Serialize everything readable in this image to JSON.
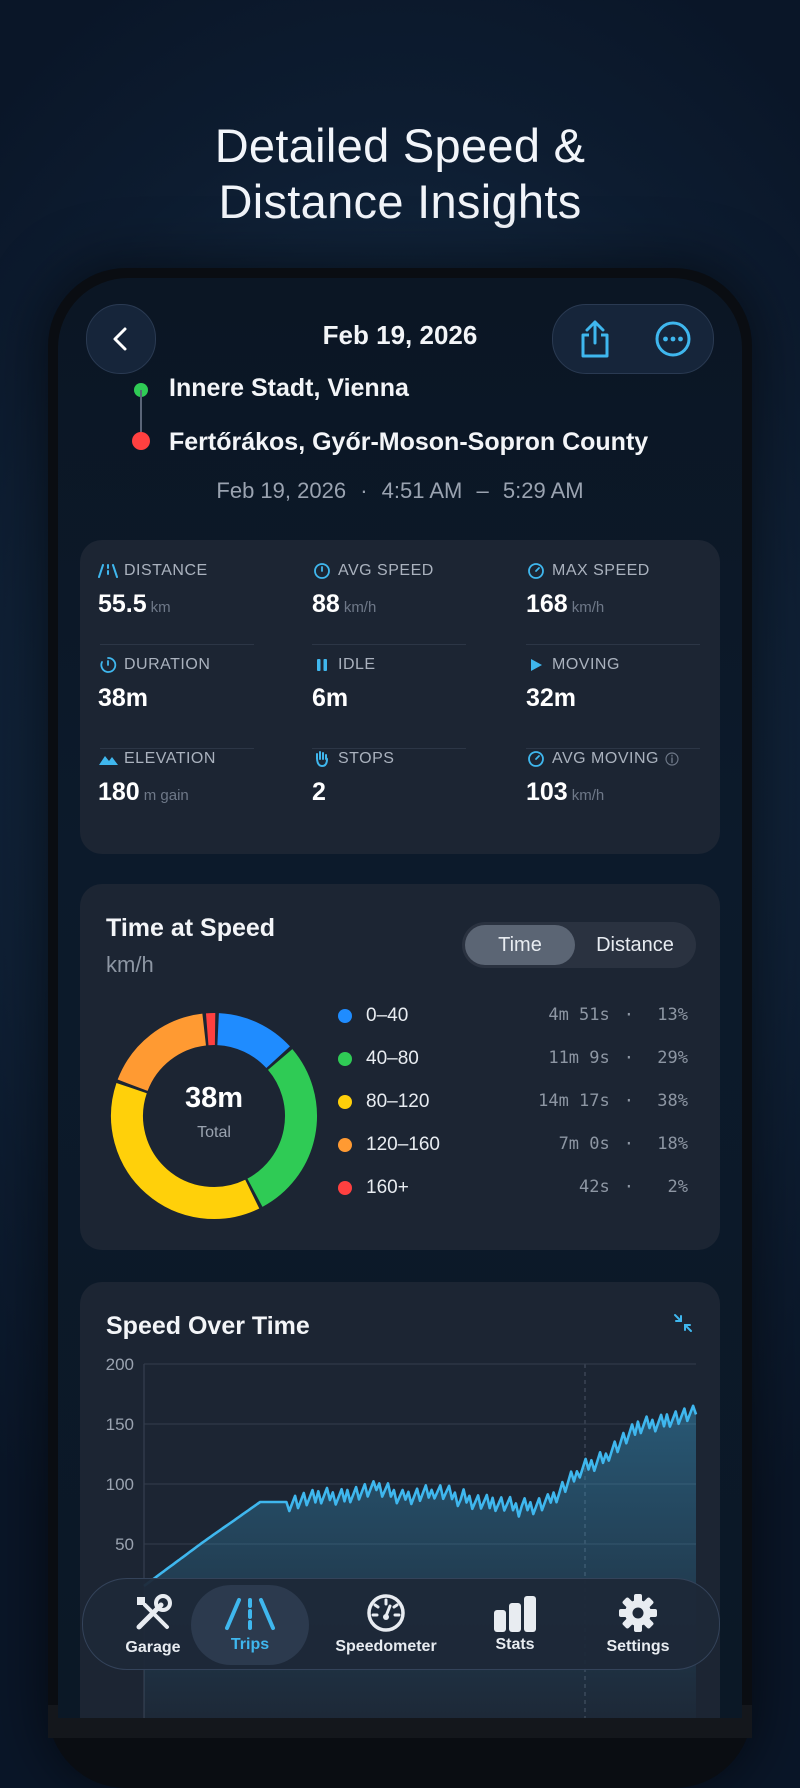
{
  "headline": {
    "line1": "Detailed Speed &",
    "line2": "Distance Insights"
  },
  "header": {
    "date": "Feb 19, 2026"
  },
  "route": {
    "start": "Innere Stadt, Vienna",
    "end": "Fertőrákos, Győr-Moson-Sopron County",
    "date": "Feb 19, 2026",
    "start_time": "4:51 AM",
    "end_time": "5:29 AM",
    "sep": "·",
    "dash": "–"
  },
  "stats": [
    {
      "label": "DISTANCE",
      "value": "55.5",
      "unit": "km",
      "icon": "road-icon"
    },
    {
      "label": "AVG SPEED",
      "value": "88",
      "unit": "km/h",
      "icon": "speed-icon"
    },
    {
      "label": "MAX SPEED",
      "value": "168",
      "unit": "km/h",
      "icon": "gauge-icon"
    },
    {
      "label": "DURATION",
      "value": "38m",
      "unit": "",
      "icon": "timer-icon"
    },
    {
      "label": "IDLE",
      "value": "6m",
      "unit": "",
      "icon": "pause-icon"
    },
    {
      "label": "MOVING",
      "value": "32m",
      "unit": "",
      "icon": "play-icon"
    },
    {
      "label": "ELEVATION",
      "value": "180",
      "unit": "m gain",
      "icon": "mountain-icon"
    },
    {
      "label": "STOPS",
      "value": "2",
      "unit": "",
      "icon": "hand-icon"
    },
    {
      "label": "AVG MOVING",
      "value": "103",
      "unit": "km/h",
      "icon": "gauge-icon"
    }
  ],
  "time_at_speed": {
    "title": "Time at Speed",
    "unit": "km/h",
    "toggle": [
      "Time",
      "Distance"
    ],
    "center_value": "38m",
    "center_label": "Total"
  },
  "speed_over_time": {
    "title": "Speed Over Time"
  },
  "nav": [
    {
      "label": "Garage",
      "icon": "tools-icon"
    },
    {
      "label": "Trips",
      "icon": "road-icon"
    },
    {
      "label": "Speedometer",
      "icon": "speedometer-icon"
    },
    {
      "label": "Stats",
      "icon": "bar-chart-icon"
    },
    {
      "label": "Settings",
      "icon": "gear-icon"
    }
  ],
  "colors": {
    "accent": "#3fb7ee",
    "blue": "#1f8cff",
    "green": "#2fcb55",
    "yellow": "#ffd00a",
    "orange": "#ff9a32",
    "red": "#ff4040"
  },
  "chart_data": [
    {
      "type": "pie",
      "categories": [
        "0–40",
        "40–80",
        "80–120",
        "120–160",
        "160+"
      ],
      "values": [
        13,
        29,
        38,
        18,
        2
      ],
      "times": [
        "4m 51s",
        "11m 9s",
        "14m 17s",
        "7m 0s",
        "42s"
      ],
      "labels": [
        "13%",
        "29%",
        "38%",
        "18%",
        "2%"
      ]
    },
    {
      "type": "line",
      "yticks": [
        50,
        100,
        150,
        200
      ],
      "ylim": [
        0,
        200
      ],
      "x": [
        0,
        2,
        4,
        6,
        8,
        10,
        12,
        14,
        16,
        18,
        20,
        22,
        24,
        26,
        28,
        30,
        32,
        34,
        36,
        38
      ],
      "values": [
        15,
        33,
        51,
        68,
        85,
        85,
        88,
        92,
        95,
        90,
        94,
        88,
        84,
        80,
        86,
        110,
        127,
        146,
        155,
        158
      ]
    }
  ]
}
